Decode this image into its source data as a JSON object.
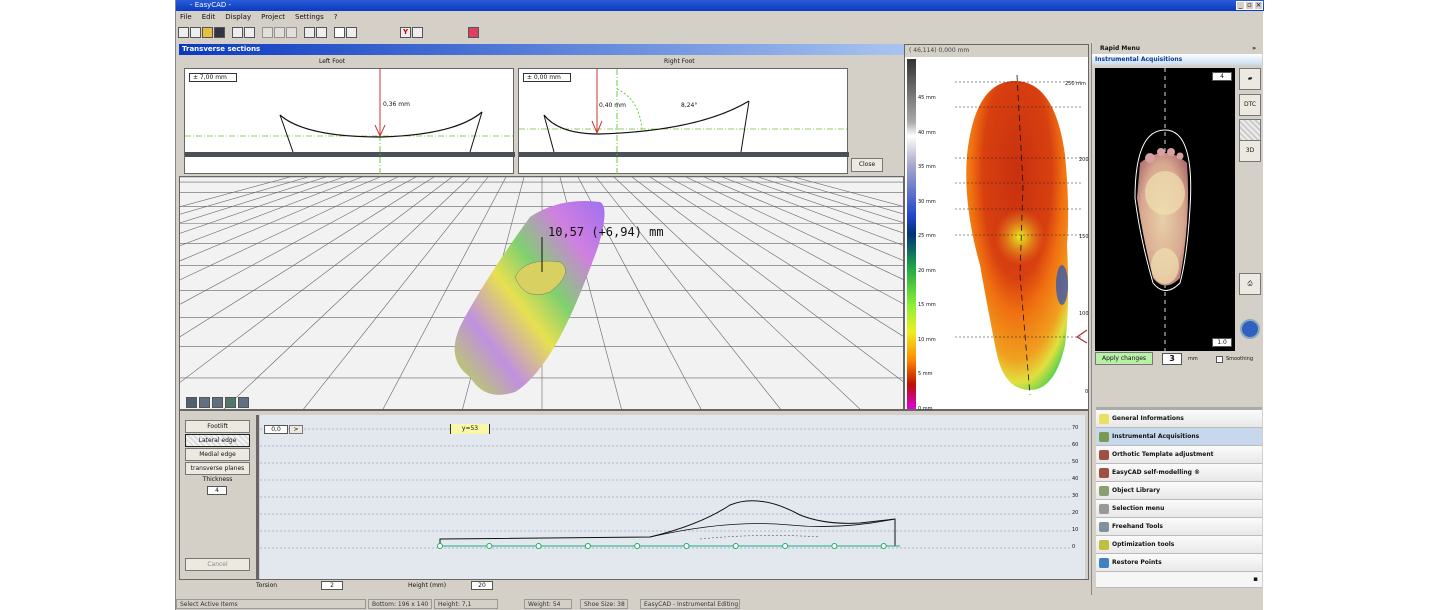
{
  "window": {
    "title": "- EasyCAD -",
    "controls": [
      "_",
      "▫",
      "×"
    ]
  },
  "menu": [
    "File",
    "Edit",
    "Display",
    "Project",
    "Settings",
    "?"
  ],
  "toolbar_icons": [
    "new-icon",
    "open-icon",
    "folder-icon",
    "save-icon",
    "print-preview-icon",
    "print-icon",
    "copy-icon",
    "cut-icon",
    "paste-icon",
    "measure-icon",
    "ruler-icon",
    "pencil-icon",
    "brush-icon",
    "foot-scan-icon",
    "camera-icon",
    "stop-icon"
  ],
  "transverse": {
    "title": "Transverse sections",
    "left": {
      "label": "Left Foot",
      "offset": "± 7,00 mm",
      "measure": "0,36 mm"
    },
    "right": {
      "label": "Right Foot",
      "offset": "± 0,00 mm",
      "measure": "0,40 mm",
      "angle": "8,24°"
    },
    "close": "Close"
  },
  "view3d": {
    "annotation": "10,57 (+6,94) mm",
    "tools": [
      "tool-1",
      "tool-2",
      "tool-3",
      "tool-4",
      "tool-5"
    ]
  },
  "pressure": {
    "readout": "( 46,114)  0,000 mm",
    "scale": [
      "45 mm",
      "40 mm",
      "35 mm",
      "30 mm",
      "25 mm",
      "20 mm",
      "15 mm",
      "10 mm",
      "5 mm",
      "0 mm"
    ],
    "right_ticks": [
      "250 mm",
      "200",
      "150",
      "100",
      "0"
    ]
  },
  "side_buttons": [
    "Footlift",
    "Lateral edge",
    "Medial edge",
    "transverse planes"
  ],
  "thickness": {
    "label": "Thickness",
    "value": "4"
  },
  "cancel": "Cancel",
  "profile": {
    "field": "0,0",
    "field_btn": ">",
    "tag": "y=53",
    "y_ticks": [
      "70",
      "60",
      "50",
      "40",
      "30",
      "20",
      "10",
      "0"
    ]
  },
  "bottom_controls": {
    "left_label": "Torsion",
    "left_value": "2",
    "right_label": "Height (mm)",
    "right_value": "20"
  },
  "status": [
    "Select Active Items",
    "Bottom: 196 x 140",
    "Height: 7,1",
    "Weight: 54",
    "Shoe Size: 38",
    "EasyCAD - Instrumental Editing"
  ],
  "rapid": {
    "title": "Rapid Menu",
    "pin": "»",
    "section": "Instrumental Acquisitions",
    "zoom_top": "4",
    "zoom_bottom": "1.0",
    "buttons": [
      "open-icon",
      "2D",
      "3D-active",
      "3D"
    ],
    "side_labels": [
      "",
      "DTC",
      "",
      "3D"
    ],
    "apply": "Apply changes",
    "apply_value": "3",
    "unit": "mm",
    "smoothing": "Smoothing",
    "items": [
      "General Informations",
      "Instrumental Acquisitions",
      "Orthotic Template adjustment",
      "EasyCAD self-modelling ®",
      "Object Library",
      "Selection menu",
      "Freehand Tools",
      "Optimization tools",
      "Restore Points"
    ],
    "item_colors": [
      "#e8e060",
      "#7a9a50",
      "#a05040",
      "#a05040",
      "#8aa070",
      "#999999",
      "#8090a0",
      "#c0c040",
      "#4080c0"
    ]
  },
  "colors": {
    "accent": "#0a3ac0",
    "apply": "#b8f0a8",
    "highlight": "#c8d8ec"
  }
}
